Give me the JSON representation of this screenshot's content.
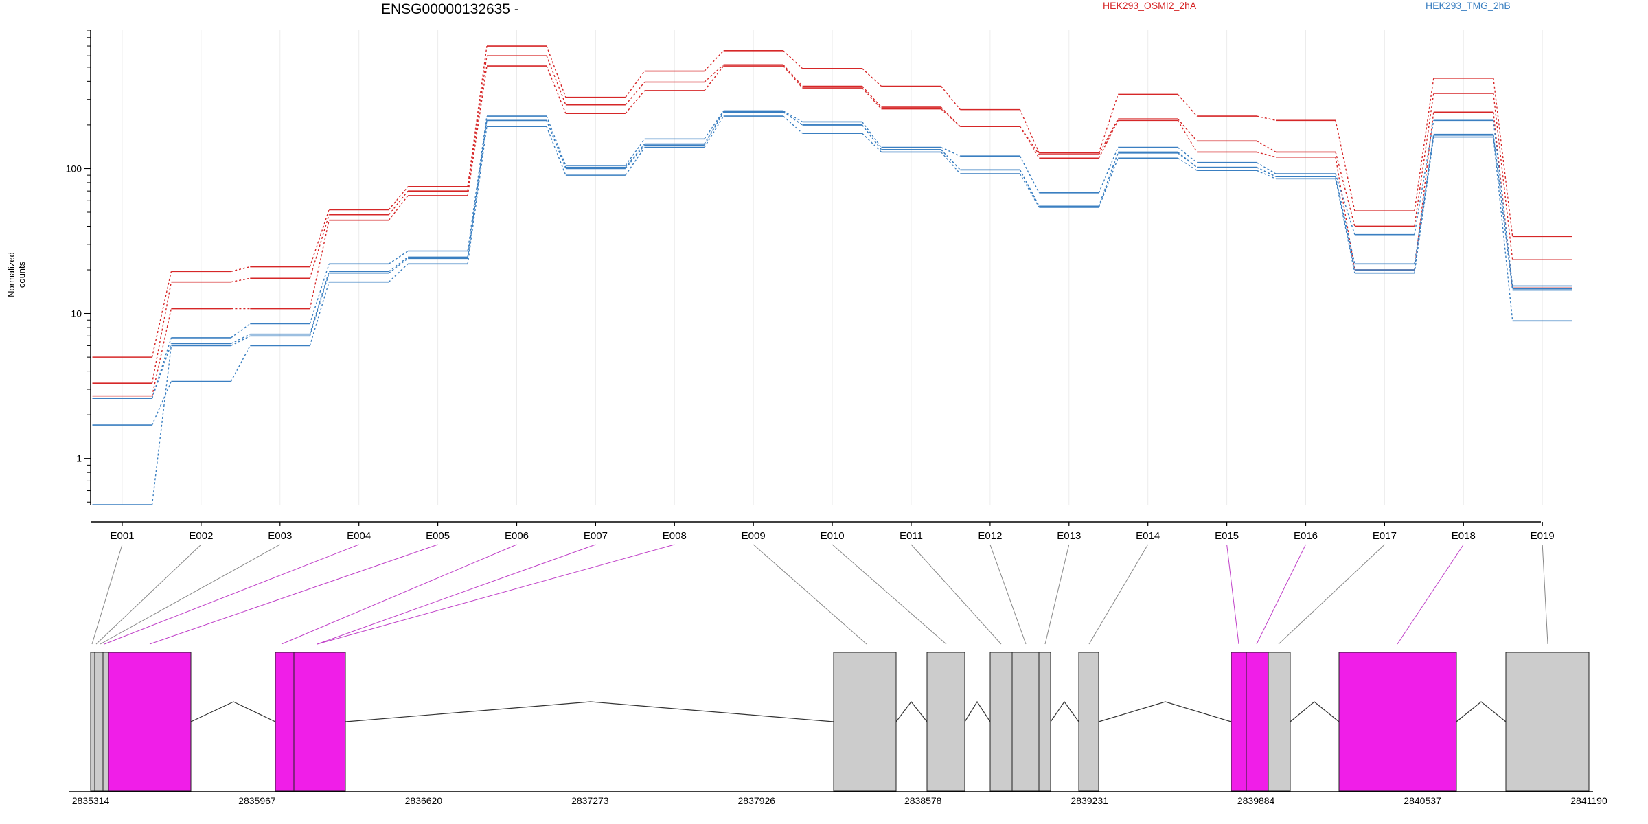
{
  "chart_data": {
    "type": "line",
    "title": "ENSG00000132635 -",
    "ylabel": "Normalized counts",
    "yscale": "log",
    "ylim": [
      0.48,
      900
    ],
    "yticks": [
      1,
      10,
      100
    ],
    "yticklabels": [
      "1",
      "10",
      "100"
    ],
    "categories": [
      "E001",
      "E002",
      "E003",
      "E004",
      "E005",
      "E006",
      "E007",
      "E008",
      "E009",
      "E010",
      "E011",
      "E012",
      "E013",
      "E014",
      "E015",
      "E016",
      "E017",
      "E018",
      "E019"
    ],
    "legend": [
      {
        "label": "HEK293_OSMI2_2hA",
        "color": "#d62728"
      },
      {
        "label": "HEK293_TMG_2hB",
        "color": "#3a7fc1"
      }
    ],
    "series": [
      {
        "group": "HEK293_OSMI2_2hA",
        "color": "#d62728",
        "values": [
          5.0,
          19.5,
          21.0,
          52,
          75,
          700,
          310,
          470,
          650,
          490,
          370,
          255,
          128,
          325,
          230,
          215,
          51,
          420,
          34
        ]
      },
      {
        "group": "HEK293_OSMI2_2hA",
        "color": "#d62728",
        "values": [
          3.3,
          16.5,
          17.5,
          48,
          70,
          600,
          275,
          395,
          520,
          370,
          265,
          195,
          125,
          220,
          155,
          130,
          40,
          330,
          23.5
        ]
      },
      {
        "group": "HEK293_OSMI2_2hA",
        "color": "#d62728",
        "values": [
          2.7,
          10.8,
          10.8,
          44,
          65,
          510,
          240,
          345,
          510,
          360,
          258,
          195,
          118,
          215,
          130,
          120,
          20,
          245,
          15
        ]
      },
      {
        "group": "HEK293_TMG_2hB",
        "color": "#3a7fc1",
        "values": [
          2.6,
          6.8,
          8.5,
          22,
          27,
          230,
          105,
          160,
          250,
          210,
          140,
          122,
          68,
          140,
          110,
          92,
          35,
          215,
          15.5
        ]
      },
      {
        "group": "HEK293_TMG_2hB",
        "color": "#3a7fc1",
        "values": [
          2.6,
          6.2,
          7.2,
          19.5,
          24.5,
          215,
          102,
          148,
          248,
          200,
          135,
          98,
          55,
          130,
          102,
          88,
          22,
          172,
          14.5
        ]
      },
      {
        "group": "HEK293_TMG_2hB",
        "color": "#3a7fc1",
        "values": [
          1.7,
          3.4,
          6.0,
          16.5,
          22,
          195,
          90,
          140,
          230,
          175,
          130,
          92,
          54,
          118,
          97,
          85,
          19,
          165,
          8.9
        ]
      },
      {
        "group": "HEK293_TMG_2hB",
        "color": "#3a7fc1",
        "values": [
          0.48,
          6.0,
          7.0,
          19.0,
          24.0,
          215,
          100,
          145,
          245,
          200,
          135,
          98,
          55,
          128,
          102,
          88,
          20,
          170,
          14.8
        ]
      }
    ],
    "gene_model": {
      "coordinate_ticks": [
        "2835314",
        "2835967",
        "2836620",
        "2837273",
        "2837926",
        "2838578",
        "2839231",
        "2839884",
        "2840537",
        "2841190"
      ],
      "exon_highlight_color": "#f01ee8",
      "exon_default_color": "#cccccc",
      "highlighted_exons": [
        "E004",
        "E005",
        "E006",
        "E007",
        "E008",
        "E015",
        "E016",
        "E018"
      ]
    }
  }
}
